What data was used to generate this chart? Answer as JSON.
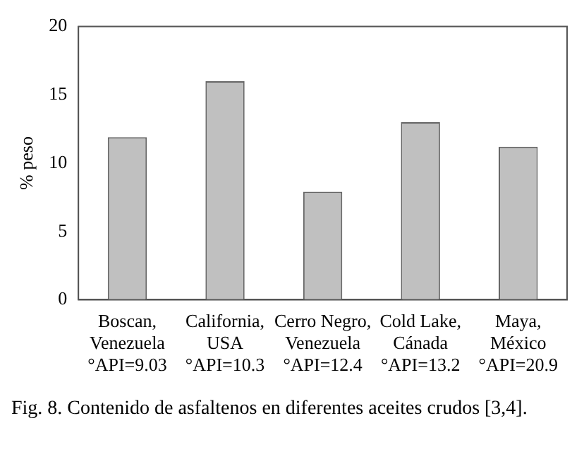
{
  "chart_data": {
    "type": "bar",
    "ylabel": "% peso",
    "categories": [
      "Boscan,\nVenezuela\n°API=9.03",
      "California,\nUSA\n°API=10.3",
      "Cerro Negro,\nVenezuela\n°API=12.4",
      "Cold Lake,\nCánada\n°API=13.2",
      "Maya,\nMéxico\n°API=20.9"
    ],
    "values": [
      11.9,
      16,
      7.9,
      13,
      11.2
    ],
    "color": "#c0c0c0",
    "ylim": [
      0,
      20
    ],
    "yticks": [
      0,
      5,
      10,
      15,
      20
    ],
    "grid": false,
    "legend": false,
    "annotations": [
      "Fig. 8. Contenido de asfaltenos en diferentes aceites crudos [3,4]."
    ]
  }
}
